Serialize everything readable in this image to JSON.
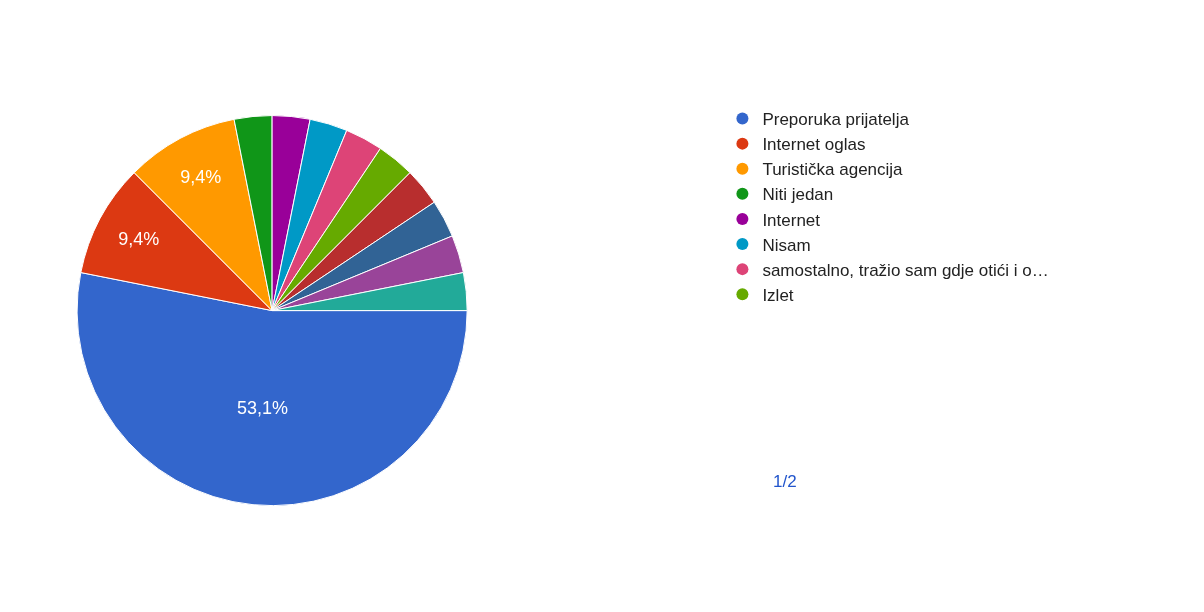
{
  "chart_data": {
    "type": "pie",
    "categories": [
      "Preporuka prijatelja",
      "Internet oglas",
      "Turistička agencija",
      "Niti jedan",
      "Internet",
      "Nisam",
      "samostalno, tražio sam gdje otići i o…",
      "Izlet",
      null,
      null,
      null,
      null
    ],
    "values": [
      53.125,
      9.375,
      9.375,
      3.125,
      3.125,
      3.125,
      3.125,
      3.125,
      3.125,
      3.125,
      3.125,
      3.125
    ],
    "value_labels": [
      "53,1%",
      "9,4%",
      "9,4%",
      null,
      null,
      null,
      null,
      null,
      null,
      null,
      null,
      null
    ],
    "colors": [
      "#3366cc",
      "#dc3912",
      "#ff9900",
      "#109618",
      "#990099",
      "#0099c6",
      "#dd4477",
      "#66aa00",
      "#b82e2e",
      "#316395",
      "#994499",
      "#22aa99"
    ],
    "legend": "right",
    "annotations": [
      "1/2"
    ]
  }
}
